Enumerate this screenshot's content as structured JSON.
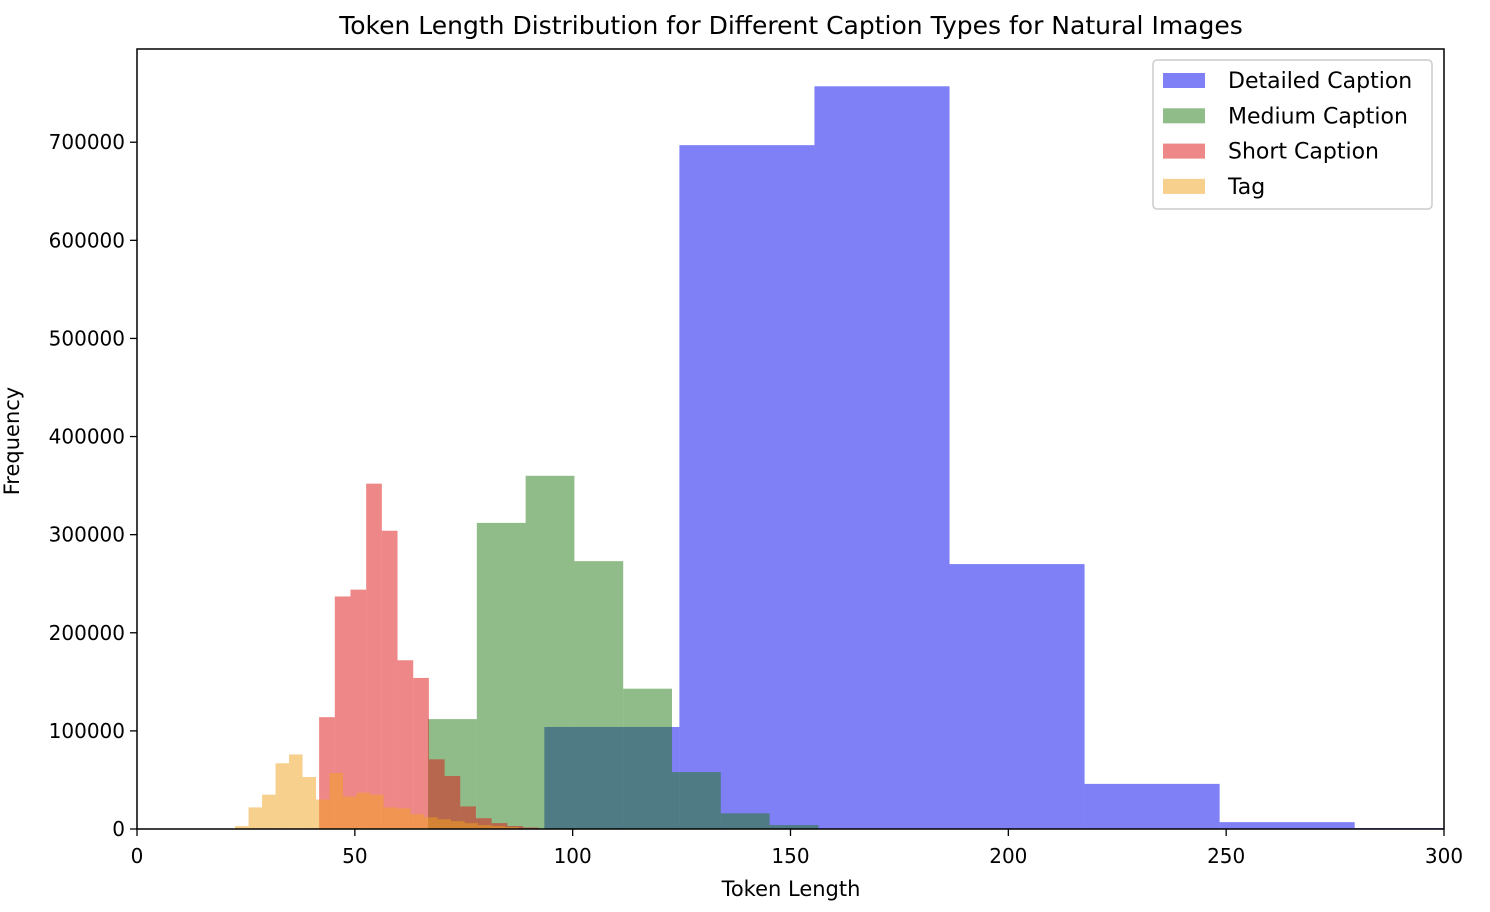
{
  "chart_data": {
    "type": "bar",
    "title": "Token Length Distribution for Different Caption Types for Natural Images",
    "xlabel": "Token Length",
    "ylabel": "Frequency",
    "xlim": [
      0,
      300
    ],
    "ylim": [
      0,
      795000
    ],
    "xticks": [
      0,
      50,
      100,
      150,
      200,
      250,
      300
    ],
    "yticks": [
      0,
      100000,
      200000,
      300000,
      400000,
      500000,
      600000,
      700000
    ],
    "grid": false,
    "legend_position": "top-right",
    "series": [
      {
        "name": "Detailed Caption",
        "color": "#0000ee",
        "alpha": 0.5,
        "bins": [
          [
            93.5,
            124.5,
            104000
          ],
          [
            124.5,
            155.5,
            697000
          ],
          [
            155.5,
            186.5,
            757000
          ],
          [
            186.5,
            217.5,
            270000
          ],
          [
            217.5,
            248.5,
            46000
          ],
          [
            248.5,
            279.5,
            7000
          ],
          [
            279.5,
            310.5,
            1000
          ]
        ]
      },
      {
        "name": "Medium Caption",
        "color": "#1f7a12",
        "alpha": 0.5,
        "bins": [
          [
            66.8,
            78.0,
            112000
          ],
          [
            78.0,
            89.2,
            312000
          ],
          [
            89.2,
            100.4,
            360000
          ],
          [
            100.4,
            111.6,
            273000
          ],
          [
            111.6,
            122.8,
            143000
          ],
          [
            122.8,
            134.0,
            58000
          ],
          [
            134.0,
            145.2,
            16000
          ],
          [
            145.2,
            156.4,
            4000
          ]
        ]
      },
      {
        "name": "Short Caption",
        "color": "#dd1111",
        "alpha": 0.5,
        "bins": [
          [
            41.8,
            45.4,
            114000
          ],
          [
            45.4,
            49.0,
            237000
          ],
          [
            49.0,
            52.6,
            244000
          ],
          [
            52.6,
            56.2,
            352000
          ],
          [
            56.2,
            59.8,
            304000
          ],
          [
            59.8,
            63.4,
            172000
          ],
          [
            63.4,
            67.0,
            154000
          ],
          [
            67.0,
            70.6,
            71000
          ],
          [
            70.6,
            74.2,
            54000
          ],
          [
            74.2,
            77.8,
            23000
          ],
          [
            77.8,
            81.4,
            11000
          ],
          [
            81.4,
            85.0,
            6000
          ],
          [
            85.0,
            88.6,
            3000
          ],
          [
            88.6,
            92.2,
            1500
          ]
        ]
      },
      {
        "name": "Tag",
        "color": "#f1a21c",
        "alpha": 0.5,
        "bins": [
          [
            22.5,
            25.6,
            3000
          ],
          [
            25.6,
            28.7,
            22000
          ],
          [
            28.7,
            31.8,
            35000
          ],
          [
            31.8,
            34.9,
            67000
          ],
          [
            34.9,
            38.0,
            76000
          ],
          [
            38.0,
            41.1,
            53000
          ],
          [
            41.1,
            44.2,
            30000
          ],
          [
            44.2,
            47.3,
            57000
          ],
          [
            47.3,
            50.4,
            33000
          ],
          [
            50.4,
            53.5,
            37000
          ],
          [
            53.5,
            56.6,
            35000
          ],
          [
            56.6,
            59.7,
            22000
          ],
          [
            59.7,
            62.8,
            21000
          ],
          [
            62.8,
            65.9,
            15000
          ],
          [
            65.9,
            69.0,
            12000
          ],
          [
            69.0,
            72.1,
            10000
          ],
          [
            72.1,
            75.2,
            8000
          ],
          [
            75.2,
            78.3,
            6000
          ],
          [
            78.3,
            81.4,
            4000
          ],
          [
            81.4,
            84.5,
            3000
          ],
          [
            84.5,
            87.6,
            2000
          ]
        ]
      }
    ]
  }
}
